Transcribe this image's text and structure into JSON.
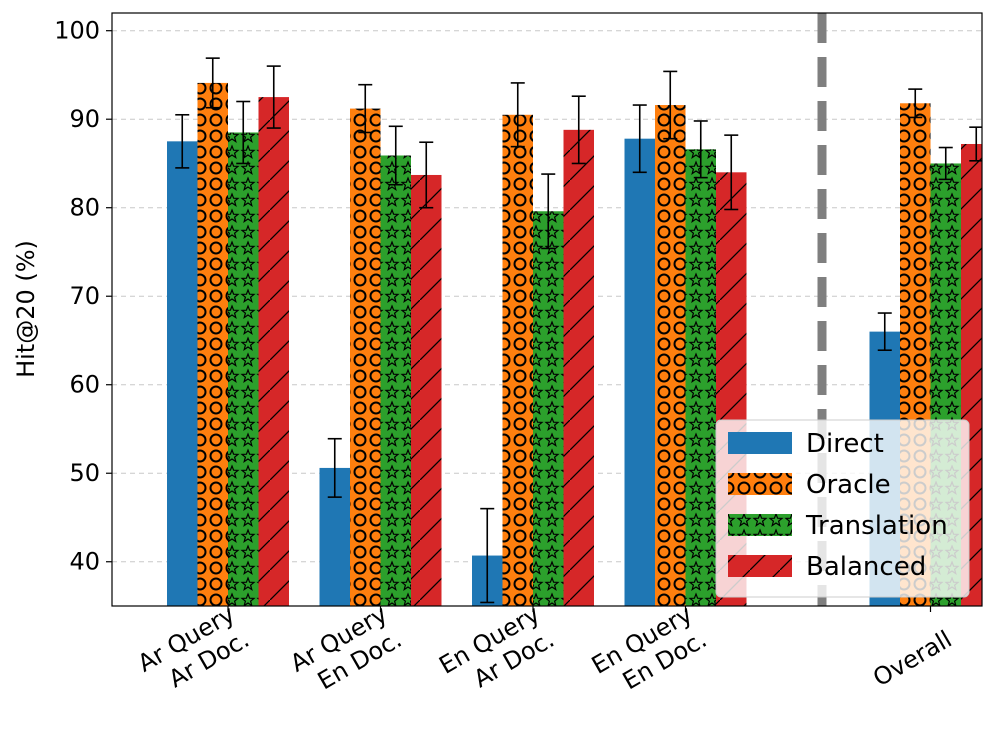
{
  "chart_data": {
    "type": "bar",
    "ylabel": "Hit@20 (%)",
    "xlabel": "",
    "ylim": [
      35,
      102
    ],
    "yticks": [
      40,
      50,
      60,
      70,
      80,
      90,
      100
    ],
    "grid": "y-dashed",
    "legend_position": "bottom-right",
    "categories": [
      [
        "Ar Query",
        "Ar Doc."
      ],
      [
        "Ar Query",
        "En Doc."
      ],
      [
        "En Query",
        "Ar Doc."
      ],
      [
        "En Query",
        "En Doc."
      ],
      [
        "Overall"
      ]
    ],
    "separator_after_category": 3,
    "series": [
      {
        "name": "Direct",
        "color": "#1f77b4",
        "pattern": "none",
        "values": [
          87.5,
          50.6,
          40.7,
          87.8,
          66.0
        ],
        "errors": [
          3.0,
          3.3,
          5.3,
          3.8,
          2.1
        ]
      },
      {
        "name": "Oracle",
        "color": "#ff7f0e",
        "pattern": "circles",
        "values": [
          94.1,
          91.2,
          90.5,
          91.6,
          91.8
        ],
        "errors": [
          2.8,
          2.7,
          3.6,
          3.8,
          1.6
        ]
      },
      {
        "name": "Translation",
        "color": "#2ca02c",
        "pattern": "stars",
        "values": [
          88.5,
          85.9,
          79.6,
          86.6,
          85.0
        ],
        "errors": [
          3.5,
          3.3,
          4.2,
          3.2,
          1.8
        ]
      },
      {
        "name": "Balanced",
        "color": "#d62728",
        "pattern": "hatch",
        "values": [
          92.5,
          83.7,
          88.8,
          84.0,
          87.2
        ],
        "errors": [
          3.5,
          3.7,
          3.8,
          4.2,
          1.9
        ]
      }
    ]
  }
}
